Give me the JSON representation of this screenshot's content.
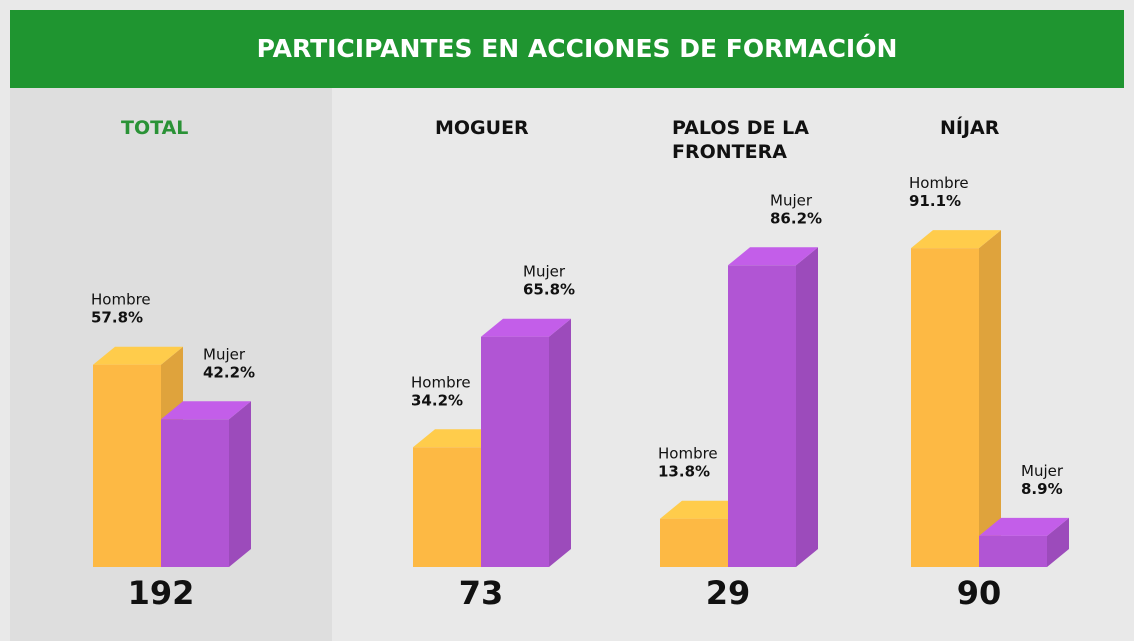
{
  "chart_data": {
    "type": "bar3d",
    "title": "PARTICIPANTES EN ACCIONES DE FORMACIÓN",
    "categories": [
      "TOTAL",
      "MOGUER",
      "PALOS DE LA FRONTERA",
      "NÍJAR"
    ],
    "totals": [
      192,
      73,
      29,
      90
    ],
    "series": [
      {
        "name": "Hombre",
        "color": "#fdb944",
        "values": [
          57.8,
          34.2,
          13.8,
          91.1
        ],
        "value_labels": [
          "57.8%",
          "34.2%",
          "13.8%",
          "91.1%"
        ]
      },
      {
        "name": "Mujer",
        "color": "#b155d4",
        "values": [
          42.2,
          65.8,
          86.2,
          8.9
        ],
        "value_labels": [
          "42.2%",
          "65.8%",
          "86.2%",
          "8.9%"
        ]
      }
    ],
    "ylim": [
      0,
      100
    ]
  }
}
